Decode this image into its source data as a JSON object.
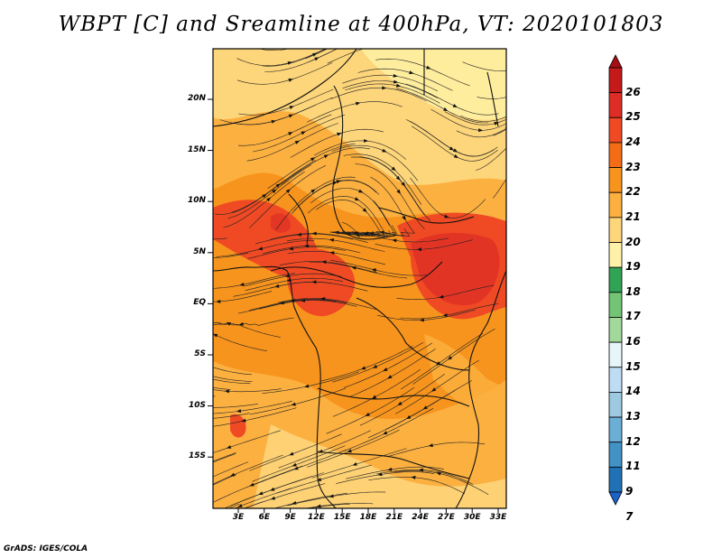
{
  "title": "WBPT [C] and Sreamline at 400hPa, VT: 2020101803",
  "credit": "GrADS: IGES/COLA",
  "map": {
    "y_labels": [
      "20N",
      "15N",
      "10N",
      "5N",
      "EQ",
      "5S",
      "10S",
      "15S"
    ],
    "x_labels": [
      "3E",
      "6E",
      "9E",
      "12E",
      "15E",
      "18E",
      "21E",
      "24E",
      "27E",
      "30E",
      "33E"
    ]
  },
  "colorbar": {
    "labels": [
      "26",
      "25",
      "24",
      "23",
      "22",
      "21",
      "20",
      "19",
      "18",
      "17",
      "16",
      "15",
      "14",
      "13",
      "12",
      "11",
      "9",
      "7"
    ],
    "colors": [
      "#a50f15",
      "#c41a1a",
      "#de2d26",
      "#ef4a24",
      "#f46d16",
      "#f7941d",
      "#fbb040",
      "#fdd57a",
      "#fff2a8",
      "#31a354",
      "#74c476",
      "#a1d99b",
      "#e5f5f9",
      "#bfdcf5",
      "#9ecae1",
      "#6baed6",
      "#4292c6",
      "#2171b5",
      "#1c63c9"
    ]
  }
}
